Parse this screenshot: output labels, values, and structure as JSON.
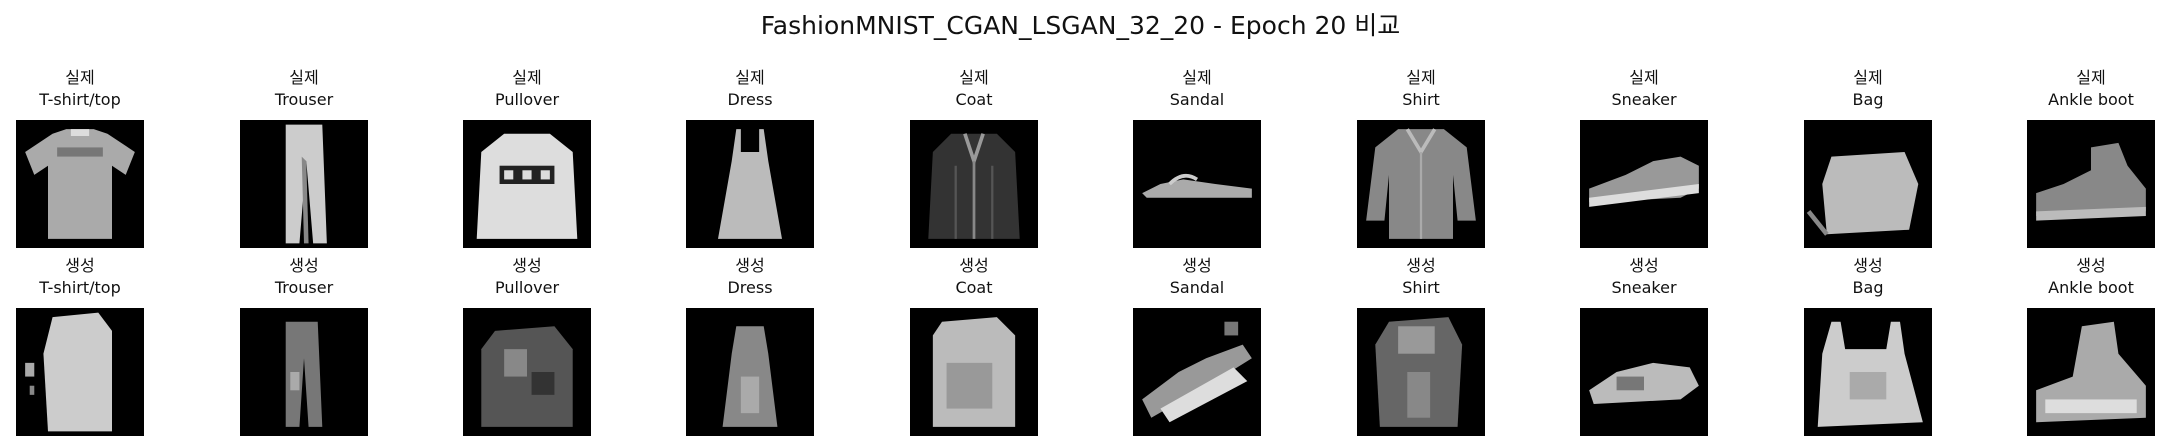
{
  "title": "FashionMNIST_CGAN_LSGAN_32_20 - Epoch 20 비교",
  "rows": [
    {
      "label": "실제",
      "kind": "real"
    },
    {
      "label": "생성",
      "kind": "generated"
    }
  ],
  "classes": [
    "T-shirt/top",
    "Trouser",
    "Pullover",
    "Dress",
    "Coat",
    "Sandal",
    "Shirt",
    "Sneaker",
    "Bag",
    "Ankle boot"
  ],
  "colors": {
    "background": "#ffffff",
    "image_background": "#000000"
  }
}
